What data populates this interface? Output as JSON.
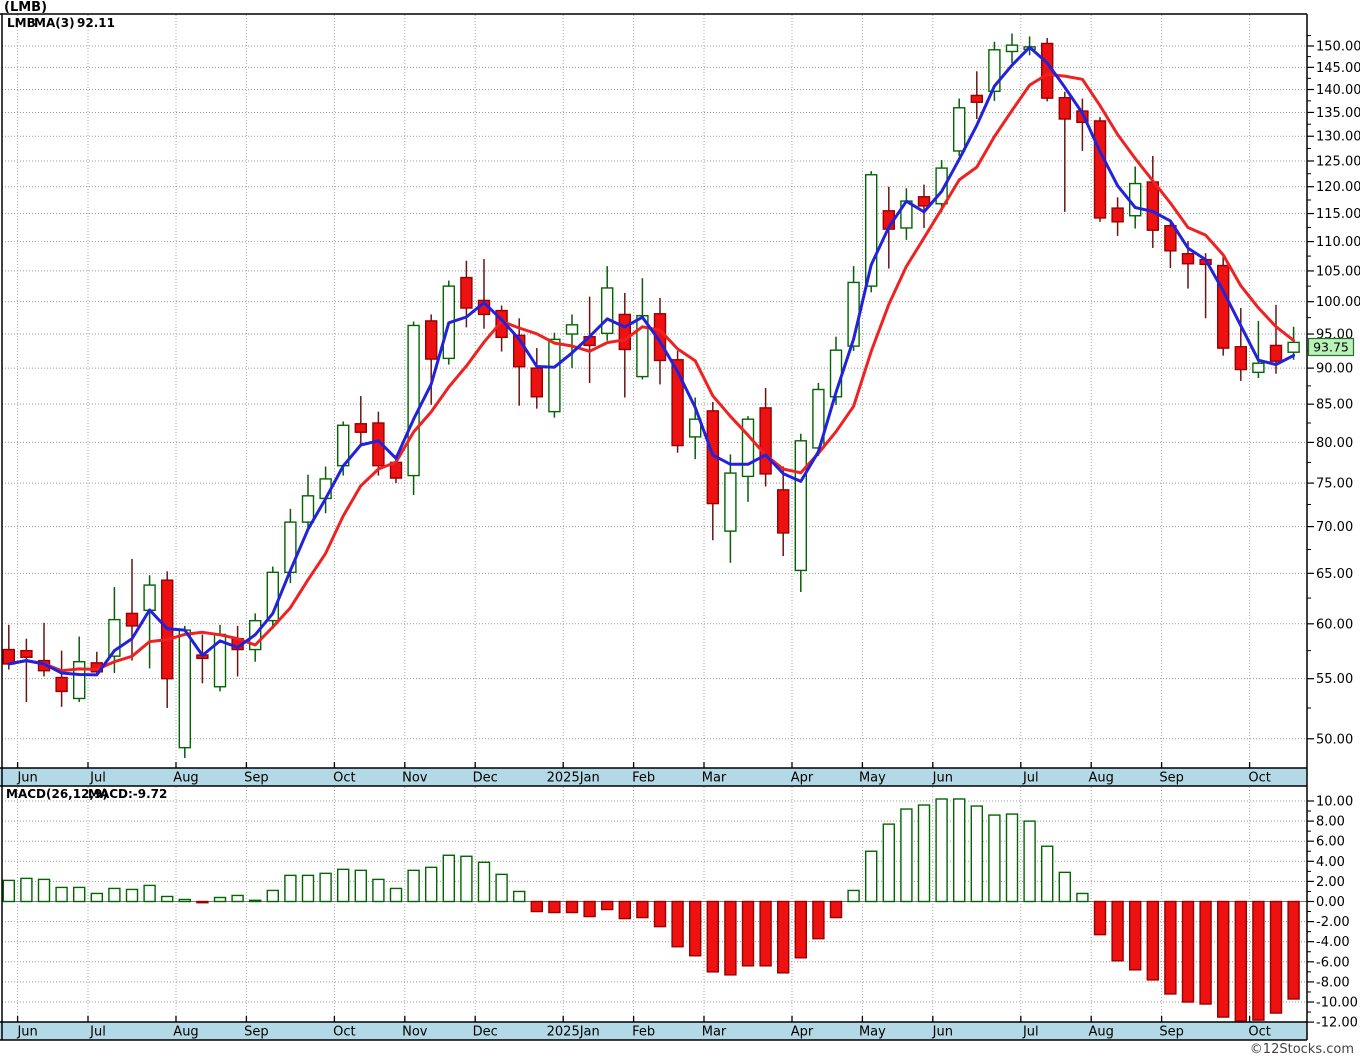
{
  "title": "(LMB)",
  "legend": {
    "symbol": "LMB",
    "ma": "MA(3)",
    "value": "92.11"
  },
  "macd_label": {
    "name": "MACD(26,12,9)",
    "value": "MACD:-9.72"
  },
  "badge": {
    "value": "93.75"
  },
  "watermark": {
    "text": "©12Stocks.com"
  },
  "colors": {
    "up_body": "#ffffff",
    "up_border": "#006600",
    "up_wick": "#0a5c0a",
    "down_body": "#ee1111",
    "down_border": "#990000",
    "down_wick": "#6b1414",
    "ma_fast_blue": "#2222dd",
    "ma_slow_red": "#ee2222",
    "grid": "#999999",
    "separator": "#aaaaaa",
    "frame": "#000000",
    "strip_bg": "#b3d9e6",
    "badge_bg": "#b8f2b8",
    "badge_border": "#2d6a2d",
    "macd_pos_border": "#006600",
    "macd_pos_fill": "#ffffff",
    "macd_neg_fill": "#ee1111",
    "macd_neg_border": "#990000",
    "legend_symbol": "#008000",
    "legend_value": "#2222cc",
    "zero_line": "#777777"
  },
  "chart_data": {
    "type": "candlestick+macd",
    "title": "(LMB)",
    "months": [
      "Jun",
      "Jul",
      "Aug",
      "Sep",
      "Oct",
      "Nov",
      "Dec",
      "2025Jan",
      "Feb",
      "Mar",
      "Apr",
      "May",
      "Jun",
      "Jul",
      "Aug",
      "Sep",
      "Oct"
    ],
    "month_boundaries": [
      1,
      5,
      10,
      14,
      19,
      23,
      27,
      32,
      36,
      40,
      45,
      49,
      53,
      58,
      62,
      66,
      71
    ],
    "price_axis": {
      "min": 50,
      "max": 150,
      "step": 5,
      "scale": "log",
      "side": "right",
      "tick_labels": [
        "150.00",
        "145.00",
        "140.00",
        "135.00",
        "130.00",
        "125.00",
        "120.00",
        "115.00",
        "110.00",
        "105.00",
        "100.00",
        "95.00",
        "90.00",
        "85.00",
        "80.00",
        "75.00",
        "70.00",
        "65.00",
        "60.00",
        "55.00",
        "50.00"
      ]
    },
    "macd_axis": {
      "min": -12,
      "max": 10,
      "step": 2,
      "tick_labels": [
        "10.00",
        "8.00",
        "6.00",
        "4.00",
        "2.00",
        "0.00",
        "-2.00",
        "-4.00",
        "-6.00",
        "-8.00",
        "-10.00",
        "-12.00"
      ]
    },
    "ma_fast_period": 3,
    "ma_slow_period": 6,
    "last_close": 93.75,
    "candles_ohlc": [
      [
        57.6,
        59.9,
        55.8,
        56.3
      ],
      [
        57.5,
        58.6,
        53.0,
        56.9
      ],
      [
        56.6,
        60.1,
        55.2,
        55.7
      ],
      [
        55.1,
        57.5,
        52.6,
        53.9
      ],
      [
        53.3,
        58.8,
        53.0,
        56.5
      ],
      [
        56.4,
        57.4,
        55.3,
        55.6
      ],
      [
        57.0,
        63.6,
        55.5,
        60.4
      ],
      [
        61.0,
        66.5,
        56.6,
        59.8
      ],
      [
        61.3,
        64.8,
        55.9,
        63.8
      ],
      [
        64.3,
        65.2,
        52.5,
        55.0
      ],
      [
        49.3,
        59.8,
        48.5,
        59.4
      ],
      [
        57.1,
        59.0,
        54.6,
        56.8
      ],
      [
        54.3,
        59.9,
        53.9,
        59.0
      ],
      [
        58.6,
        59.8,
        55.2,
        57.6
      ],
      [
        57.6,
        61.0,
        56.5,
        60.3
      ],
      [
        60.3,
        65.7,
        59.5,
        65.1
      ],
      [
        65.1,
        72.0,
        64.0,
        70.5
      ],
      [
        70.5,
        76.0,
        69.5,
        73.5
      ],
      [
        73.2,
        77.0,
        71.5,
        75.5
      ],
      [
        77.1,
        82.7,
        75.9,
        82.2
      ],
      [
        82.4,
        86.1,
        79.8,
        81.3
      ],
      [
        82.5,
        84.0,
        75.9,
        77.1
      ],
      [
        77.5,
        78.4,
        75.0,
        75.6
      ],
      [
        75.9,
        96.9,
        73.6,
        96.3
      ],
      [
        97.0,
        98.0,
        84.9,
        91.3
      ],
      [
        91.4,
        103.4,
        90.5,
        102.5
      ],
      [
        103.9,
        106.7,
        96.0,
        99.0
      ],
      [
        100.2,
        107.0,
        95.8,
        98.0
      ],
      [
        98.6,
        99.4,
        92.4,
        94.5
      ],
      [
        94.8,
        97.4,
        84.8,
        90.2
      ],
      [
        90.0,
        92.9,
        84.4,
        86.0
      ],
      [
        84.0,
        95.2,
        83.2,
        94.2
      ],
      [
        95.0,
        98.0,
        90.0,
        96.4
      ],
      [
        94.6,
        100.8,
        87.9,
        93.3
      ],
      [
        95.1,
        105.8,
        94.0,
        102.2
      ],
      [
        98.0,
        101.4,
        85.9,
        92.7
      ],
      [
        88.8,
        103.8,
        88.4,
        97.8
      ],
      [
        98.1,
        100.6,
        87.7,
        91.1
      ],
      [
        91.2,
        92.5,
        78.7,
        79.6
      ],
      [
        80.7,
        85.9,
        77.9,
        83.0
      ],
      [
        84.1,
        85.3,
        68.5,
        72.6
      ],
      [
        69.5,
        78.5,
        66.1,
        76.2
      ],
      [
        75.8,
        83.4,
        72.8,
        83.0
      ],
      [
        84.5,
        87.2,
        74.6,
        76.1
      ],
      [
        74.2,
        77.0,
        66.8,
        69.3
      ],
      [
        65.3,
        81.1,
        63.1,
        80.2
      ],
      [
        79.3,
        87.9,
        78.3,
        87.0
      ],
      [
        86.0,
        94.6,
        84.9,
        92.6
      ],
      [
        93.2,
        105.8,
        92.5,
        103.1
      ],
      [
        102.5,
        123.0,
        101.5,
        122.3
      ],
      [
        115.5,
        120.0,
        105.4,
        112.2
      ],
      [
        112.4,
        119.7,
        110.3,
        117.3
      ],
      [
        118.1,
        120.4,
        112.4,
        116.4
      ],
      [
        116.8,
        125.2,
        115.2,
        123.6
      ],
      [
        127.0,
        138.0,
        126.0,
        136.0
      ],
      [
        138.7,
        144.1,
        133.6,
        137.2
      ],
      [
        139.6,
        151.0,
        137.5,
        149.1
      ],
      [
        148.7,
        153.0,
        146.0,
        150.2
      ],
      [
        149.2,
        152.3,
        147.8,
        149.8
      ],
      [
        150.6,
        151.9,
        137.4,
        138.1
      ],
      [
        138.2,
        139.5,
        115.3,
        133.6
      ],
      [
        135.3,
        138.0,
        127.0,
        132.9
      ],
      [
        133.2,
        134.0,
        113.5,
        114.2
      ],
      [
        116.0,
        118.0,
        111.0,
        113.5
      ],
      [
        114.6,
        123.9,
        112.3,
        120.6
      ],
      [
        120.9,
        126.0,
        108.9,
        112.0
      ],
      [
        112.8,
        113.7,
        105.5,
        108.4
      ],
      [
        107.9,
        110.1,
        102.1,
        106.2
      ],
      [
        106.9,
        108.0,
        97.4,
        106.1
      ],
      [
        105.9,
        107.5,
        91.8,
        92.9
      ],
      [
        93.1,
        99.0,
        88.2,
        89.8
      ],
      [
        89.4,
        97.0,
        88.6,
        90.7
      ],
      [
        93.3,
        99.5,
        89.2,
        91.0
      ],
      [
        92.3,
        96.1,
        91.2,
        93.75
      ]
    ],
    "macd_values": [
      2.1,
      2.3,
      2.2,
      1.4,
      1.4,
      0.8,
      1.3,
      1.2,
      1.6,
      0.5,
      0.2,
      -0.1,
      0.4,
      0.6,
      0.1,
      1.1,
      2.6,
      2.6,
      2.8,
      3.2,
      3.1,
      2.2,
      1.3,
      3.1,
      3.4,
      4.6,
      4.5,
      3.9,
      2.7,
      1.0,
      -1.0,
      -1.1,
      -1.1,
      -1.5,
      -0.8,
      -1.7,
      -1.6,
      -2.5,
      -4.5,
      -5.4,
      -7.0,
      -7.3,
      -6.4,
      -6.4,
      -7.1,
      -5.6,
      -3.7,
      -1.6,
      1.1,
      5.0,
      7.7,
      9.2,
      9.6,
      10.2,
      10.2,
      9.5,
      8.6,
      8.7,
      8.0,
      5.5,
      2.9,
      0.8,
      -3.3,
      -5.9,
      -6.8,
      -7.8,
      -9.2,
      -10.0,
      -10.2,
      -11.5,
      -11.9,
      -11.8,
      -11.1,
      -9.7
    ]
  }
}
